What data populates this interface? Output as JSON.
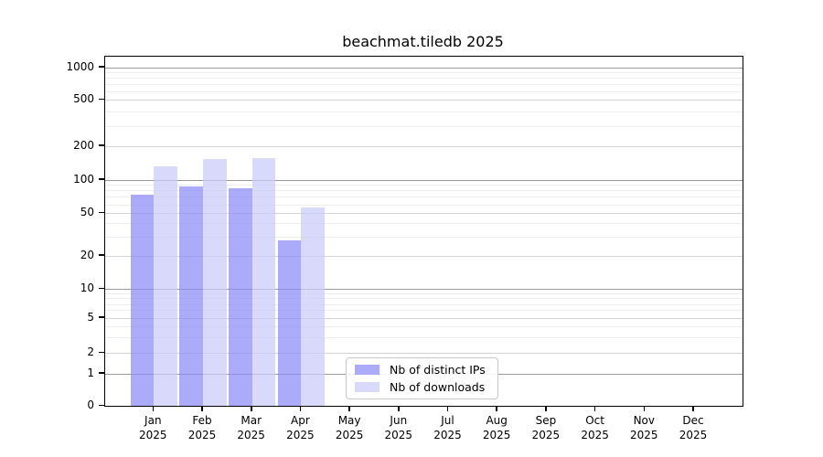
{
  "chart_data": {
    "type": "bar",
    "title": "beachmat.tiledb 2025",
    "y_scale": "log",
    "ylim": [
      0,
      1000
    ],
    "grid": true,
    "legend_position": "lower center",
    "y_ticks": [
      1000,
      500,
      200,
      100,
      50,
      20,
      10,
      5,
      2,
      1,
      0
    ],
    "y_minor_ticks": [
      900,
      800,
      700,
      600,
      400,
      300,
      90,
      80,
      70,
      60,
      40,
      30,
      9,
      8,
      7,
      6,
      4,
      3
    ],
    "categories": [
      {
        "month": "Jan",
        "year": "2025"
      },
      {
        "month": "Feb",
        "year": "2025"
      },
      {
        "month": "Mar",
        "year": "2025"
      },
      {
        "month": "Apr",
        "year": "2025"
      },
      {
        "month": "May",
        "year": "2025"
      },
      {
        "month": "Jun",
        "year": "2025"
      },
      {
        "month": "Jul",
        "year": "2025"
      },
      {
        "month": "Aug",
        "year": "2025"
      },
      {
        "month": "Sep",
        "year": "2025"
      },
      {
        "month": "Oct",
        "year": "2025"
      },
      {
        "month": "Nov",
        "year": "2025"
      },
      {
        "month": "Dec",
        "year": "2025"
      }
    ],
    "series": [
      {
        "name": "Nb of distinct IPs",
        "key": "distinct-ips",
        "color": "#8a8af8",
        "values": [
          73,
          87,
          84,
          28,
          0,
          0,
          0,
          0,
          0,
          0,
          0,
          0
        ]
      },
      {
        "name": "Nb of downloads",
        "key": "downloads",
        "color": "#cacafa",
        "values": [
          133,
          153,
          156,
          56,
          0,
          0,
          0,
          0,
          0,
          0,
          0,
          0
        ]
      }
    ],
    "bar_alpha": 0.72,
    "colors": {
      "grid_power10": "#9b9b9b",
      "grid_major": "#d4d4d4",
      "grid_minor": "#ededed",
      "axis": "#000000",
      "text": "#000000",
      "legend_border": "#c9c9c9"
    }
  }
}
